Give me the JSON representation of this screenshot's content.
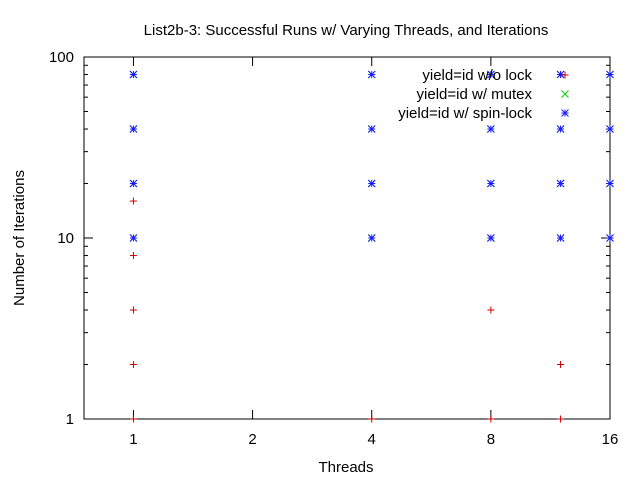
{
  "chart_data": {
    "type": "scatter",
    "title": "List2b-3: Successful Runs w/ Varying Threads, and Iterations",
    "xlabel": "Threads",
    "ylabel": "Number of Iterations",
    "xscale": "log2",
    "yscale": "log10",
    "xlim": [
      0.75,
      16
    ],
    "ylim": [
      1,
      100
    ],
    "xticks": [
      1,
      2,
      4,
      8,
      16
    ],
    "xtick_labels": [
      "1",
      "2",
      "4",
      "8",
      "16"
    ],
    "yticks": [
      1,
      10,
      100
    ],
    "ytick_labels": [
      "1",
      "10",
      "100"
    ],
    "grid": false,
    "legend_position": "top-right",
    "series": [
      {
        "name": "yield=id w/o lock",
        "color": "#cc0000",
        "marker": "plus",
        "points": [
          [
            1,
            1
          ],
          [
            1,
            2
          ],
          [
            1,
            4
          ],
          [
            1,
            8
          ],
          [
            1,
            16
          ],
          [
            4,
            1
          ],
          [
            8,
            1
          ],
          [
            8,
            4
          ],
          [
            12,
            1
          ],
          [
            12,
            2
          ],
          [
            12,
            80
          ]
        ]
      },
      {
        "name": "yield=id w/ mutex",
        "color": "#00cc00",
        "marker": "cross",
        "points": [
          [
            1,
            10
          ],
          [
            1,
            20
          ],
          [
            1,
            40
          ],
          [
            1,
            80
          ],
          [
            4,
            10
          ],
          [
            4,
            20
          ],
          [
            4,
            40
          ],
          [
            4,
            80
          ],
          [
            8,
            10
          ],
          [
            8,
            20
          ],
          [
            8,
            40
          ],
          [
            8,
            80
          ],
          [
            12,
            10
          ],
          [
            12,
            20
          ],
          [
            12,
            40
          ],
          [
            12,
            80
          ],
          [
            16,
            10
          ],
          [
            16,
            20
          ],
          [
            16,
            40
          ],
          [
            16,
            80
          ]
        ]
      },
      {
        "name": "yield=id w/ spin-lock",
        "color": "#1a1aff",
        "marker": "star",
        "points": [
          [
            1,
            10
          ],
          [
            1,
            20
          ],
          [
            1,
            40
          ],
          [
            1,
            80
          ],
          [
            4,
            10
          ],
          [
            4,
            20
          ],
          [
            4,
            40
          ],
          [
            4,
            80
          ],
          [
            8,
            10
          ],
          [
            8,
            20
          ],
          [
            8,
            40
          ],
          [
            8,
            80
          ],
          [
            12,
            10
          ],
          [
            12,
            20
          ],
          [
            12,
            40
          ],
          [
            12,
            80
          ],
          [
            16,
            10
          ],
          [
            16,
            20
          ],
          [
            16,
            40
          ],
          [
            16,
            80
          ]
        ]
      }
    ]
  }
}
